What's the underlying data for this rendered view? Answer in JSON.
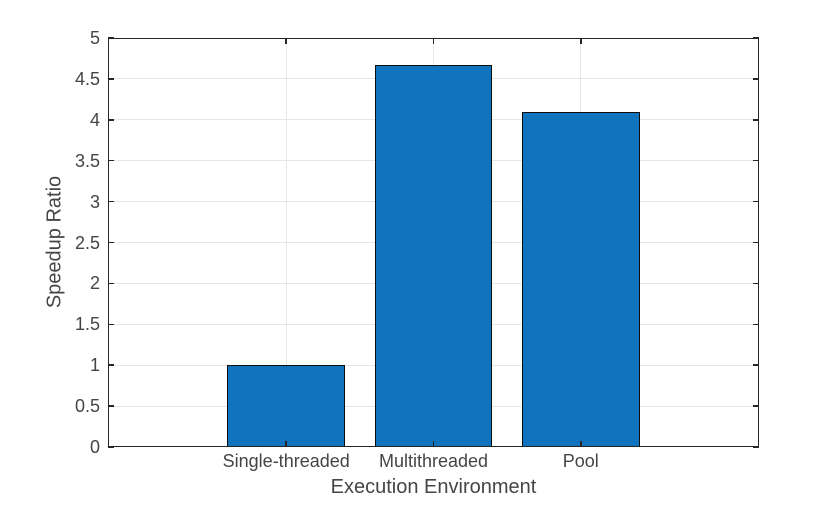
{
  "chart_data": {
    "type": "bar",
    "title": "",
    "xlabel": "Execution Environment",
    "ylabel": "Speedup Ratio",
    "categories": [
      "Single-threaded",
      "Multithreaded",
      "Pool"
    ],
    "x": [
      1,
      2,
      3
    ],
    "values": [
      1.0,
      4.67,
      4.1
    ],
    "bar_width": 0.8,
    "xlim": [
      -0.21,
      4.21
    ],
    "ylim": [
      0,
      5
    ],
    "yticks": [
      0,
      0.5,
      1,
      1.5,
      2,
      2.5,
      3,
      3.5,
      4,
      4.5,
      5
    ],
    "ytick_labels": [
      "0",
      "0.5",
      "1",
      "1.5",
      "2",
      "2.5",
      "3",
      "3.5",
      "4",
      "4.5",
      "5"
    ],
    "grid": true,
    "legend_position": "none",
    "colors": {
      "bar_fill": "#0f73bd",
      "bar_edge": "#0d0d0d",
      "axis": "#262626",
      "grid": "#e6e6e6",
      "text": "#454545",
      "background": "#ffffff"
    }
  }
}
